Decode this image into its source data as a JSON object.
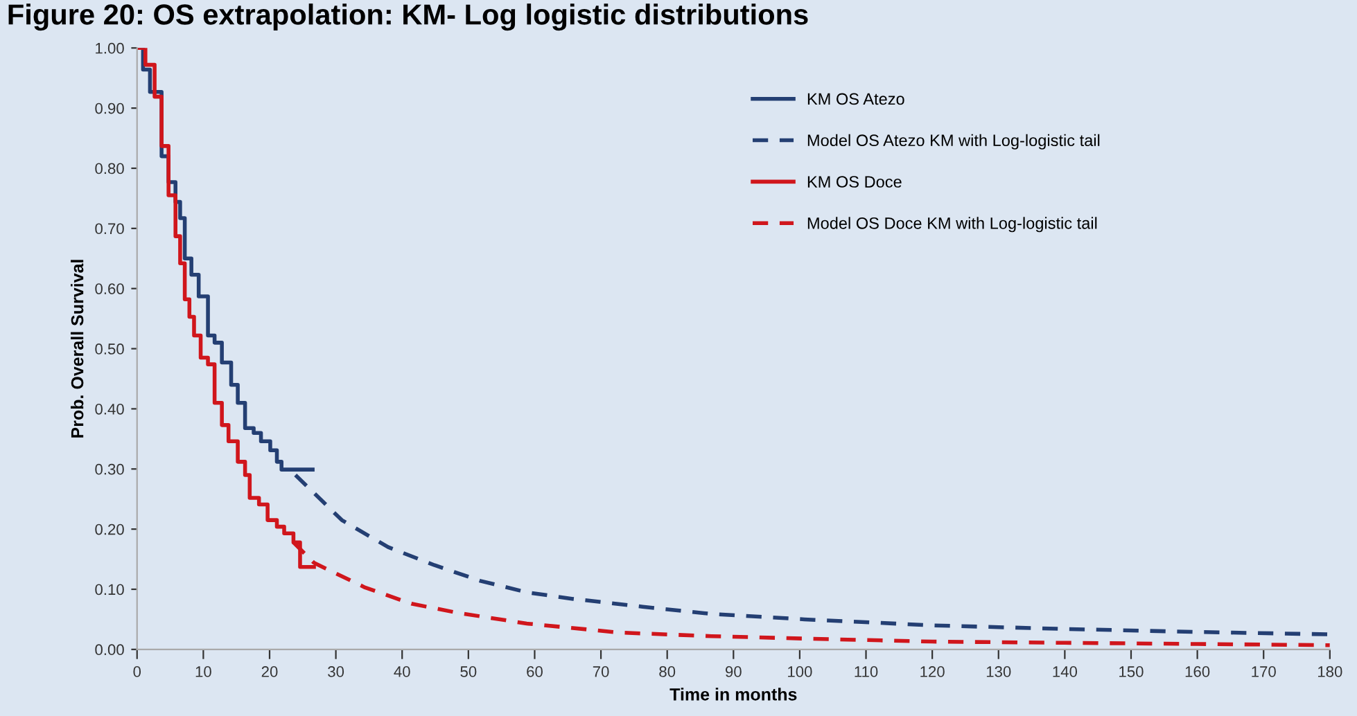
{
  "chart_data": {
    "type": "line",
    "title": "Figure 20: OS extrapolation: KM- Log logistic distributions",
    "xlabel": "Time in months",
    "ylabel": "Prob. Overall Survival",
    "xlim": [
      0,
      180
    ],
    "xticks": [
      0,
      10,
      20,
      30,
      40,
      50,
      60,
      70,
      80,
      90,
      100,
      110,
      120,
      130,
      140,
      150,
      160,
      170,
      180
    ],
    "ylim": [
      0,
      1
    ],
    "yticks": [
      {
        "value": 0,
        "label": "0.00"
      },
      {
        "value": 0.1,
        "label": "0.10"
      },
      {
        "value": 0.2,
        "label": "0.20"
      },
      {
        "value": 0.3,
        "label": "0.30"
      },
      {
        "value": 0.4,
        "label": "0.40"
      },
      {
        "value": 0.5,
        "label": "0.50"
      },
      {
        "value": 0.6,
        "label": "0.60"
      },
      {
        "value": 0.7,
        "label": "0.70"
      },
      {
        "value": 0.8,
        "label": "0.80"
      },
      {
        "value": 0.9,
        "label": "0.90"
      },
      {
        "value": 1,
        "label": "1.00"
      }
    ],
    "grid": false,
    "legend": "top right",
    "series": [
      {
        "name": "KM OS Atezo",
        "type": "step",
        "color": "#243f73",
        "line_style": "solid",
        "x": [
          0,
          0.9,
          1.95,
          3.7,
          4.75,
          5.8,
          6.5,
          7.2,
          8.2,
          9.3,
          10.7,
          11.7,
          12.8,
          14.2,
          15.2,
          16.3,
          17.6,
          18.7,
          20.1,
          21.1,
          21.8,
          26.5
        ],
        "values": [
          1.0,
          0.964,
          0.927,
          0.82,
          0.777,
          0.744,
          0.717,
          0.65,
          0.623,
          0.587,
          0.522,
          0.51,
          0.477,
          0.44,
          0.41,
          0.368,
          0.36,
          0.346,
          0.331,
          0.312,
          0.299,
          0.299
        ]
      },
      {
        "name": "Model OS Atezo KM with Log-logistic tail",
        "color": "#243f73",
        "line_style": "dashed",
        "x": [
          23.9,
          30.9,
          37.9,
          44.9,
          51.8,
          58.8,
          65.8,
          76.3,
          86.7,
          100.7,
          120,
          140,
          160,
          180
        ],
        "values": [
          0.29,
          0.215,
          0.17,
          0.14,
          0.114,
          0.095,
          0.084,
          0.071,
          0.059,
          0.05,
          0.04,
          0.034,
          0.029,
          0.025
        ]
      },
      {
        "name": "KM OS Doce",
        "type": "step",
        "color": "#d0161c",
        "line_style": "solid",
        "x": [
          0,
          1.26,
          2.65,
          3.7,
          4.75,
          5.8,
          6.5,
          7.2,
          7.9,
          8.6,
          9.6,
          10.7,
          11.7,
          12.8,
          13.8,
          15.2,
          16.3,
          17,
          18.4,
          19.7,
          21.1,
          22.2,
          23.6,
          24.6,
          26.7
        ],
        "values": [
          1.0,
          0.972,
          0.919,
          0.837,
          0.755,
          0.687,
          0.642,
          0.582,
          0.553,
          0.522,
          0.485,
          0.474,
          0.41,
          0.373,
          0.346,
          0.312,
          0.29,
          0.252,
          0.241,
          0.215,
          0.204,
          0.193,
          0.178,
          0.137,
          0.137
        ]
      },
      {
        "name": "Model OS Doce KM with Log-logistic tail",
        "color": "#d0161c",
        "line_style": "dashed",
        "x": [
          23.6,
          26.7,
          34.4,
          41.4,
          48.3,
          58.8,
          72.8,
          86.7,
          100.7,
          120,
          140,
          160,
          180
        ],
        "values": [
          0.178,
          0.144,
          0.103,
          0.076,
          0.061,
          0.043,
          0.028,
          0.022,
          0.018,
          0.013,
          0.011,
          0.009,
          0.007
        ]
      }
    ]
  }
}
